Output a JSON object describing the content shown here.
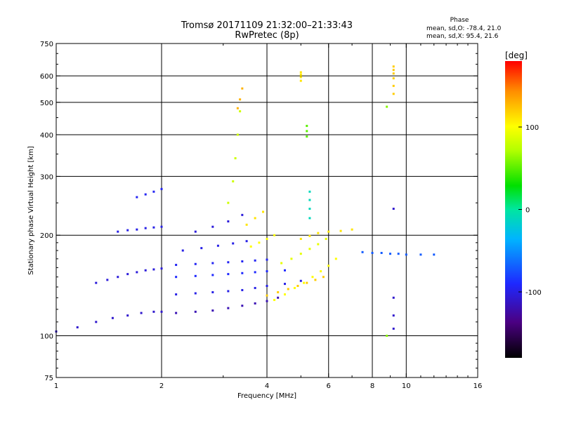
{
  "chart_data": {
    "type": "scatter",
    "title": "Tromsø 20171109 21:32:00–21:33:43",
    "subtitle": "RwPretec (8p)",
    "xlabel": "Frequency [MHz]",
    "ylabel": "Stationary phase Virtual Height [km]",
    "x_scale": "log",
    "y_scale": "log",
    "xlim": [
      1,
      16
    ],
    "ylim": [
      75,
      750
    ],
    "x_ticks": [
      1,
      2,
      4,
      6,
      8,
      10,
      16
    ],
    "x_tick_labels": [
      "1",
      "2",
      "4",
      "6",
      "8",
      "10",
      "16"
    ],
    "x_grid": [
      2,
      4,
      6,
      8,
      10
    ],
    "y_ticks": [
      75,
      100,
      200,
      300,
      400,
      500,
      600,
      750
    ],
    "y_tick_labels": [
      "75",
      "100",
      "200",
      "300",
      "400",
      "500",
      "600",
      "750"
    ],
    "y_grid": [
      100,
      200,
      300,
      400,
      500,
      600
    ],
    "grid": true,
    "stats": {
      "heading": "Phase",
      "line_o": "mean, sd,O: -78.4, 21.0",
      "line_x": "mean, sd,X:  95.4, 21.6"
    },
    "colorbar": {
      "label": "[deg]",
      "range": [
        -180,
        180
      ],
      "ticks": [
        100,
        0,
        -100
      ],
      "tick_labels": [
        "100",
        "0",
        "-100"
      ]
    },
    "traces": [
      {
        "x": [
          1.0,
          1.15,
          1.3,
          1.45,
          1.6,
          1.75,
          1.9,
          2.0
        ],
        "y": [
          103,
          106,
          110,
          113,
          115,
          117,
          118,
          118
        ],
        "phase": -110
      },
      {
        "x": [
          1.3,
          1.4,
          1.5,
          1.6,
          1.7,
          1.8,
          1.9,
          2.0
        ],
        "y": [
          144,
          147,
          150,
          153,
          155,
          157,
          158,
          159
        ],
        "phase": -105
      },
      {
        "x": [
          1.5,
          1.6,
          1.7,
          1.8,
          1.9,
          2.0
        ],
        "y": [
          205,
          207,
          208,
          210,
          211,
          212
        ],
        "phase": -100
      },
      {
        "x": [
          1.7,
          1.8,
          1.9,
          2.0
        ],
        "y": [
          260,
          265,
          270,
          275
        ],
        "phase": -95
      },
      {
        "x": [
          2.2,
          2.5,
          2.8,
          3.1,
          3.4,
          3.7,
          4.0,
          4.3
        ],
        "y": [
          117,
          118,
          119,
          121,
          123,
          125,
          127,
          130
        ],
        "phase": -120
      },
      {
        "x": [
          2.2,
          2.5,
          2.8,
          3.1,
          3.4,
          3.7,
          4.0,
          4.5,
          5.0
        ],
        "y": [
          133,
          134,
          135,
          136,
          137,
          139,
          141,
          143,
          146
        ],
        "phase": -100
      },
      {
        "x": [
          2.2,
          2.5,
          2.8,
          3.1,
          3.4,
          3.7,
          4.0,
          4.5
        ],
        "y": [
          150,
          151,
          152,
          153,
          154,
          155,
          156,
          157
        ],
        "phase": -90
      },
      {
        "x": [
          2.2,
          2.5,
          2.8,
          3.1,
          3.4,
          3.7,
          4.0
        ],
        "y": [
          163,
          164,
          165,
          166,
          167,
          168,
          169
        ],
        "phase": -95
      },
      {
        "x": [
          2.3,
          2.6,
          2.9,
          3.2,
          3.5
        ],
        "y": [
          180,
          183,
          186,
          189,
          192
        ],
        "phase": -100
      },
      {
        "x": [
          2.5,
          2.8,
          3.1,
          3.4
        ],
        "y": [
          205,
          212,
          220,
          230
        ],
        "phase": -105
      },
      {
        "x": [
          3.1,
          3.2,
          3.25,
          3.3,
          3.35
        ],
        "y": [
          250,
          290,
          340,
          400,
          470
        ],
        "phase": 80
      },
      {
        "x": [
          3.3,
          3.35,
          3.4
        ],
        "y": [
          480,
          510,
          550
        ],
        "phase": 130
      },
      {
        "x": [
          3.6,
          3.8,
          4.0,
          4.2
        ],
        "y": [
          185,
          190,
          195,
          200
        ],
        "phase": 100
      },
      {
        "x": [
          3.5,
          3.7,
          3.9
        ],
        "y": [
          215,
          225,
          235
        ],
        "phase": 110
      },
      {
        "x": [
          4.0,
          4.3,
          4.6,
          4.9,
          5.2,
          5.5,
          5.8
        ],
        "y": [
          132,
          135,
          138,
          141,
          144,
          147,
          150
        ],
        "phase": 120
      },
      {
        "x": [
          4.2,
          4.5,
          4.8,
          5.1,
          5.4,
          5.7,
          6.0,
          6.3
        ],
        "y": [
          128,
          133,
          139,
          144,
          150,
          156,
          162,
          170
        ],
        "phase": 100
      },
      {
        "x": [
          4.4,
          4.7,
          5.0,
          5.3,
          5.6,
          5.9
        ],
        "y": [
          165,
          170,
          176,
          182,
          188,
          195
        ],
        "phase": 90
      },
      {
        "x": [
          5.0,
          5.3,
          5.6,
          6.0,
          6.5,
          7.0
        ],
        "y": [
          195,
          199,
          203,
          205,
          206,
          208
        ],
        "phase": 110
      },
      {
        "x": [
          7.5,
          8.0,
          8.5,
          9.0,
          9.5,
          10.0,
          11.0,
          12.0
        ],
        "y": [
          178,
          177,
          177,
          176,
          176,
          175,
          175,
          175
        ],
        "phase": -70
      },
      {
        "x": [
          5.3,
          5.3,
          5.3,
          5.3
        ],
        "y": [
          225,
          240,
          255,
          270
        ],
        "phase": -10
      },
      {
        "x": [
          5.0,
          5.0,
          5.0,
          5.0
        ],
        "y": [
          580,
          595,
          605,
          615
        ],
        "phase": 110
      },
      {
        "x": [
          5.2,
          5.2,
          5.2
        ],
        "y": [
          395,
          410,
          425
        ],
        "phase": 50
      },
      {
        "x": [
          9.2,
          9.2,
          9.2,
          9.2,
          9.2,
          9.2
        ],
        "y": [
          530,
          560,
          590,
          610,
          625,
          640
        ],
        "phase": 120
      },
      {
        "x": [
          9.2,
          9.2,
          9.2,
          9.2
        ],
        "y": [
          105,
          115,
          130,
          240
        ],
        "phase": -110
      },
      {
        "x": [
          8.8,
          8.8
        ],
        "y": [
          485,
          100
        ],
        "phase": 60
      }
    ]
  }
}
